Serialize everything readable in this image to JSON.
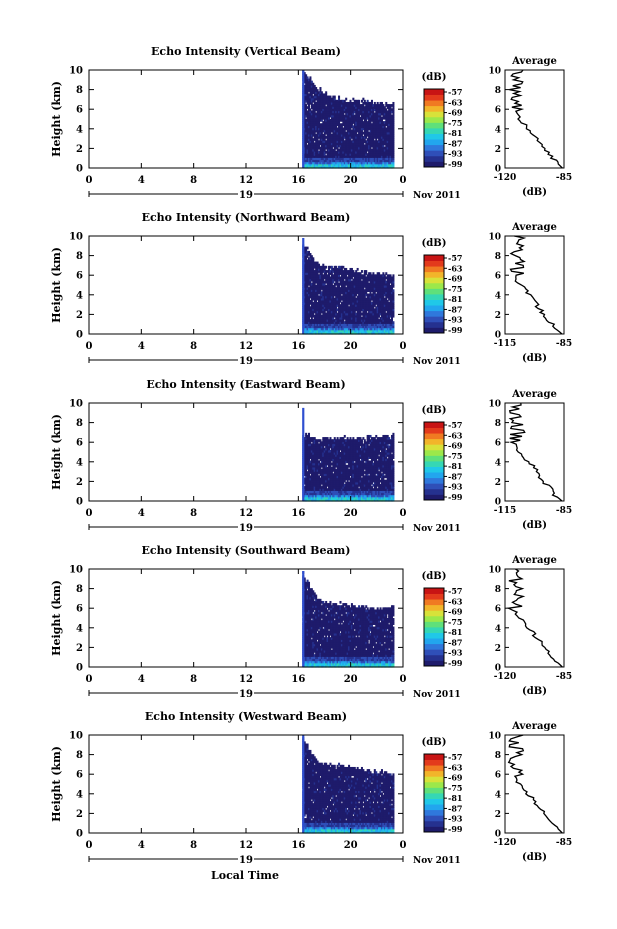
{
  "figure": {
    "xlabel_bottom": "Local Time"
  },
  "colorbar": {
    "unit": "(dB)",
    "ticks": [
      "-57",
      "-63",
      "-69",
      "-75",
      "-81",
      "-87",
      "-93",
      "-99"
    ],
    "colors": [
      "#1e1b6b",
      "#25318f",
      "#2f4fb8",
      "#2f78dc",
      "#22a6ee",
      "#20c8e8",
      "#35d7b4",
      "#5fe07a",
      "#9ce84a",
      "#d8e23a",
      "#f2b52a",
      "#f07a22",
      "#e33a1c",
      "#c81414"
    ]
  },
  "chart_data": [
    {
      "type": "heatmap",
      "title": "Echo Intensity (Vertical Beam)",
      "ylabel": "Height (km)",
      "ylim": [
        0,
        10
      ],
      "yticks": [
        0,
        2,
        4,
        6,
        8,
        10
      ],
      "xlim": [
        0,
        24
      ],
      "xticks": [
        "0",
        "4",
        "8",
        "12",
        "16",
        "20",
        "0"
      ],
      "date_label": "19",
      "month_label": "Nov 2011",
      "data_start_hour": 16.3,
      "data_end_hour": 23.3,
      "echo_top_km": [
        10.0,
        8.2,
        7.4,
        7.0,
        7.0,
        6.8,
        6.6
      ],
      "spike_top_km": 10.0,
      "average": {
        "title": "Average",
        "xlabel": "(dB)",
        "xtick_labels": [
          "-120",
          "-85"
        ],
        "xlim": [
          -120,
          -85
        ]
      }
    },
    {
      "type": "heatmap",
      "title": "Echo Intensity (Northward Beam)",
      "ylabel": "Height (km)",
      "ylim": [
        0,
        10
      ],
      "yticks": [
        0,
        2,
        4,
        6,
        8,
        10
      ],
      "xlim": [
        0,
        24
      ],
      "xticks": [
        "0",
        "4",
        "8",
        "12",
        "16",
        "20",
        "0"
      ],
      "date_label": "19",
      "month_label": "Nov 2011",
      "data_start_hour": 16.3,
      "data_end_hour": 23.3,
      "echo_top_km": [
        9.5,
        7.2,
        7.0,
        6.8,
        6.5,
        6.3,
        6.1
      ],
      "spike_top_km": 9.8,
      "average": {
        "title": "Average",
        "xlabel": "(dB)",
        "xtick_labels": [
          "-115",
          "-85"
        ],
        "xlim": [
          -115,
          -85
        ]
      }
    },
    {
      "type": "heatmap",
      "title": "Echo Intensity (Eastward Beam)",
      "ylabel": "Height (km)",
      "ylim": [
        0,
        10
      ],
      "yticks": [
        0,
        2,
        4,
        6,
        8,
        10
      ],
      "xlim": [
        0,
        24
      ],
      "xticks": [
        "0",
        "4",
        "8",
        "12",
        "16",
        "20",
        "0"
      ],
      "date_label": "19",
      "month_label": "Nov 2011",
      "data_start_hour": 16.3,
      "data_end_hour": 23.3,
      "echo_top_km": [
        7.0,
        6.4,
        6.6,
        6.6,
        6.5,
        6.7,
        7.0
      ],
      "spike_top_km": 9.5,
      "average": {
        "title": "Average",
        "xlabel": "(dB)",
        "xtick_labels": [
          "-115",
          "-85"
        ],
        "xlim": [
          -115,
          -85
        ]
      }
    },
    {
      "type": "heatmap",
      "title": "Echo Intensity (Southward Beam)",
      "ylabel": "Height (km)",
      "ylim": [
        0,
        10
      ],
      "yticks": [
        0,
        2,
        4,
        6,
        8,
        10
      ],
      "xlim": [
        0,
        24
      ],
      "xticks": [
        "0",
        "4",
        "8",
        "12",
        "16",
        "20",
        "0"
      ],
      "date_label": "19",
      "month_label": "Nov 2011",
      "data_start_hour": 16.3,
      "data_end_hour": 23.3,
      "echo_top_km": [
        9.6,
        7.0,
        6.6,
        6.5,
        6.2,
        6.0,
        6.3
      ],
      "spike_top_km": 9.8,
      "average": {
        "title": "Average",
        "xlabel": "(dB)",
        "xtick_labels": [
          "-120",
          "-85"
        ],
        "xlim": [
          -120,
          -85
        ]
      }
    },
    {
      "type": "heatmap",
      "title": "Echo Intensity (Westward Beam)",
      "ylabel": "Height (km)",
      "ylim": [
        0,
        10
      ],
      "yticks": [
        0,
        2,
        4,
        6,
        8,
        10
      ],
      "xlim": [
        0,
        24
      ],
      "xticks": [
        "0",
        "4",
        "8",
        "12",
        "16",
        "20",
        "0"
      ],
      "date_label": "19",
      "month_label": "Nov 2011",
      "data_start_hour": 16.3,
      "data_end_hour": 23.3,
      "echo_top_km": [
        9.8,
        7.4,
        7.0,
        6.9,
        6.6,
        6.4,
        6.2
      ],
      "spike_top_km": 10.0,
      "average": {
        "title": "Average",
        "xlabel": "(dB)",
        "xtick_labels": [
          "-120",
          "-85"
        ],
        "xlim": [
          -120,
          -85
        ]
      }
    }
  ]
}
